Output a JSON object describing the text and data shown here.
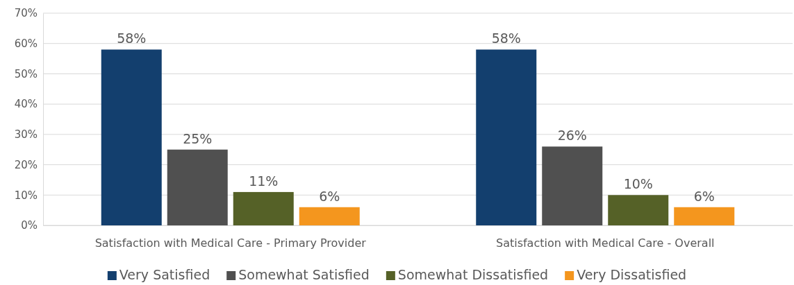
{
  "chart_data": {
    "type": "bar",
    "categories": [
      "Satisfaction with Medical Care - Primary Provider",
      "Satisfaction with Medical Care - Overall"
    ],
    "series": [
      {
        "name": "Very Satisfied",
        "color": "#133f6e",
        "values": [
          58,
          58
        ],
        "value_labels": [
          "58%",
          "58%"
        ]
      },
      {
        "name": "Somewhat Satisfied",
        "color": "#505050",
        "values": [
          25,
          26
        ],
        "value_labels": [
          "25%",
          "26%"
        ]
      },
      {
        "name": "Somewhat Dissatisfied",
        "color": "#556127",
        "values": [
          11,
          10
        ],
        "value_labels": [
          "11%",
          "10%"
        ]
      },
      {
        "name": "Very Dissatisfied",
        "color": "#f4961e",
        "values": [
          6,
          6
        ],
        "value_labels": [
          "6%",
          "6%"
        ]
      }
    ],
    "ylim": [
      0,
      70
    ],
    "yticks": [
      {
        "value": 0,
        "label": "0%"
      },
      {
        "value": 10,
        "label": "10%"
      },
      {
        "value": 20,
        "label": "20%"
      },
      {
        "value": 30,
        "label": "30%"
      },
      {
        "value": 40,
        "label": "40%"
      },
      {
        "value": 50,
        "label": "50%"
      },
      {
        "value": 60,
        "label": "60%"
      },
      {
        "value": 70,
        "label": "70%"
      }
    ],
    "grid": "y",
    "legend": "bottom"
  }
}
